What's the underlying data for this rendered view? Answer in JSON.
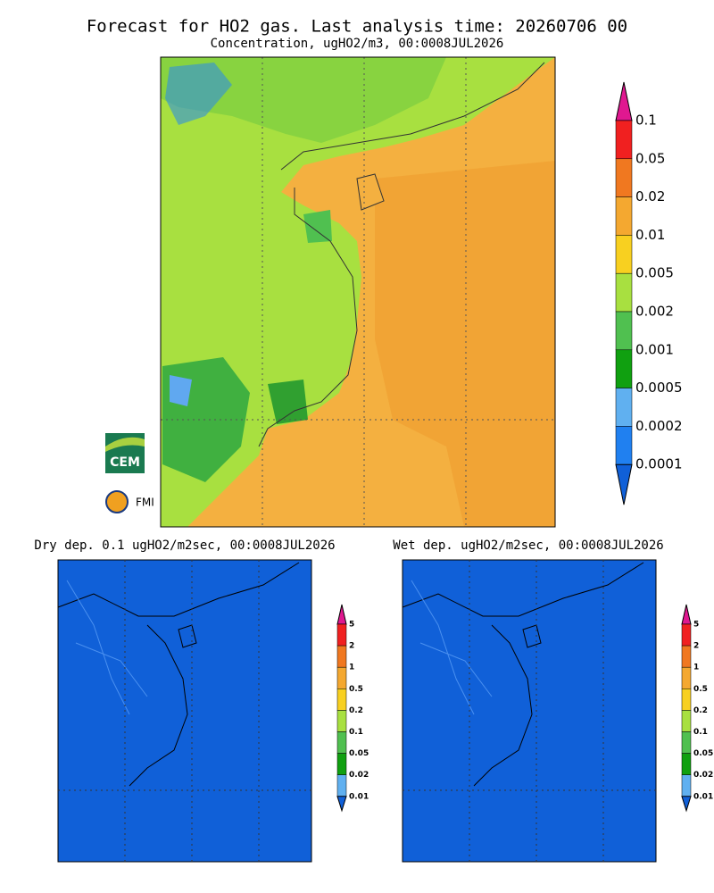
{
  "header": {
    "title": "Forecast for HO2 gas. Last analysis time: 20260706 00",
    "subtitle": "Concentration, ugHO2/m3, 00:0008JUL2026"
  },
  "main_legend": {
    "labels": [
      "0.1",
      "0.05",
      "0.02",
      "0.01",
      "0.005",
      "0.002",
      "0.001",
      "0.0005",
      "0.0002",
      "0.0001"
    ]
  },
  "panels": [
    {
      "title": "Dry dep. 0.1 ugHO2/m2sec, 00:0008JUL2026",
      "legend": [
        "5",
        "2",
        "1",
        "0.5",
        "0.2",
        "0.1",
        "0.05",
        "0.02",
        "0.01"
      ]
    },
    {
      "title": "Wet dep. ugHO2/m2sec, 00:0008JUL2026",
      "legend": [
        "5",
        "2",
        "1",
        "0.5",
        "0.2",
        "0.1",
        "0.05",
        "0.02",
        "0.01"
      ]
    }
  ],
  "logos": [
    "CEM",
    "FMI"
  ]
}
